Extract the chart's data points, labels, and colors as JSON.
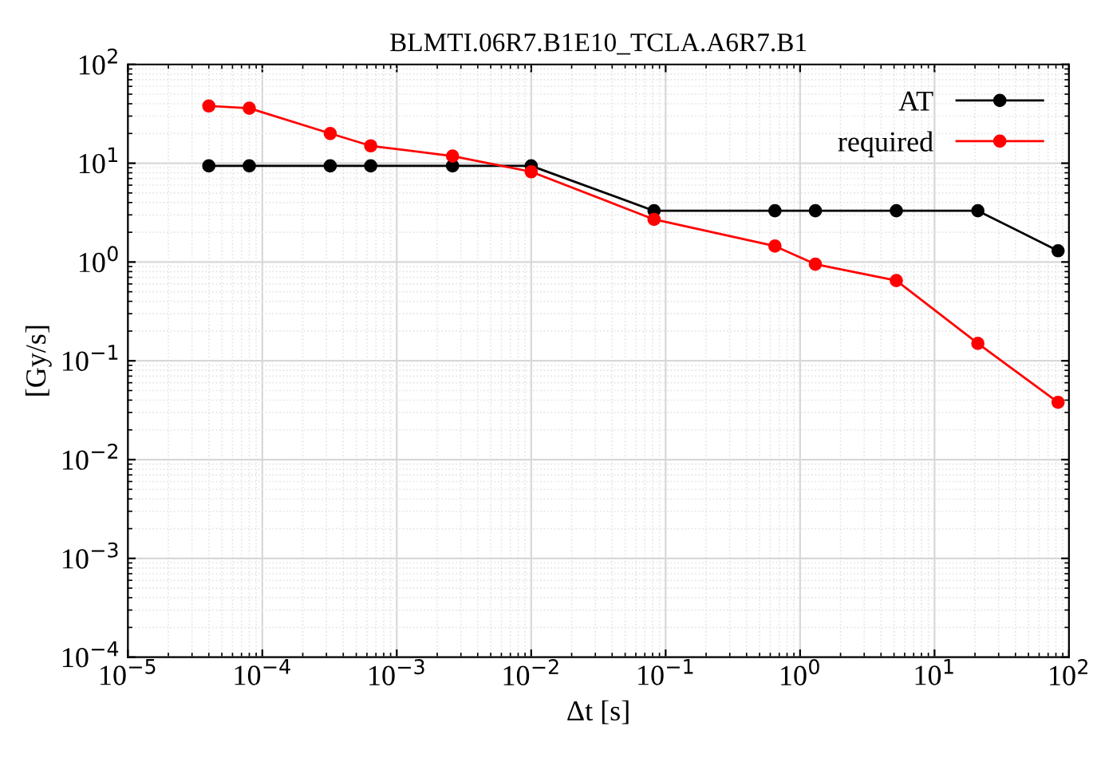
{
  "chart_data": {
    "type": "line",
    "title": "BLMTI.06R7.B1E10_TCLA.A6R7.B1",
    "xlabel": "Δt [s]",
    "ylabel": "[Gy/s]",
    "log": "xy",
    "grid": true,
    "legend": "top right",
    "marker": "circle",
    "line_style": "solid",
    "xlim": [
      1e-05,
      100
    ],
    "ylim": [
      0.0001,
      100
    ],
    "xticks": [
      {
        "value": 1e-05,
        "label": "10$^{−5}$"
      },
      {
        "value": 0.0001,
        "label": "10$^{−4}$"
      },
      {
        "value": 0.001,
        "label": "10$^{−3}$"
      },
      {
        "value": 0.01,
        "label": "10$^{−2}$"
      },
      {
        "value": 0.1,
        "label": "10$^{−1}$"
      },
      {
        "value": 1,
        "label": "10$^{0}$"
      },
      {
        "value": 10,
        "label": "10$^{1}$"
      },
      {
        "value": 100,
        "label": "10$^{2}$"
      }
    ],
    "yticks": [
      {
        "value": 0.0001,
        "label": "10$^{−4}$"
      },
      {
        "value": 0.001,
        "label": "10$^{−3}$"
      },
      {
        "value": 0.01,
        "label": "10$^{−2}$"
      },
      {
        "value": 0.1,
        "label": "10$^{−1}$"
      },
      {
        "value": 1,
        "label": "10$^{0}$"
      },
      {
        "value": 10,
        "label": "10$^{1}$"
      },
      {
        "value": 100,
        "label": "10$^{2}$"
      }
    ],
    "x": [
      4e-05,
      8e-05,
      0.00032,
      0.00064,
      0.0026,
      0.01,
      0.082,
      0.65,
      1.3,
      5.2,
      21,
      83
    ],
    "series": [
      {
        "name": "AT",
        "color": "#000000",
        "values": [
          9.4,
          9.4,
          9.4,
          9.4,
          9.4,
          9.4,
          3.3,
          3.3,
          3.3,
          3.3,
          3.3,
          1.3
        ]
      },
      {
        "name": "required",
        "color": "#ff0000",
        "values": [
          38,
          36,
          20,
          15,
          11.8,
          8.2,
          2.7,
          1.45,
          0.95,
          0.65,
          0.15,
          0.038
        ]
      }
    ]
  }
}
